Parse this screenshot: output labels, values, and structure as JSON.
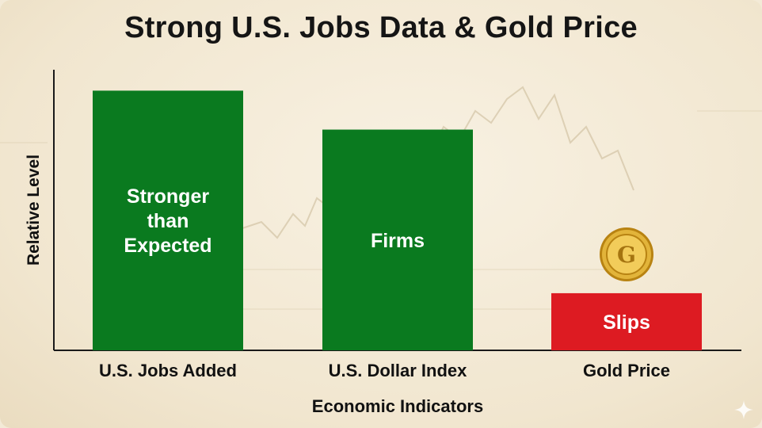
{
  "chart_data": {
    "type": "bar",
    "title": "Strong U.S. Jobs Data & Gold Price",
    "xlabel": "Economic Indicators",
    "ylabel": "Relative Level",
    "categories": [
      "U.S. Jobs Added",
      "U.S. Dollar Index",
      "Gold Price"
    ],
    "values": [
      100,
      85,
      22
    ],
    "bar_labels": [
      [
        "Stronger",
        "than",
        "Expected"
      ],
      [
        "Firms"
      ],
      [
        "Slips"
      ]
    ],
    "ylim": [
      0,
      105
    ],
    "grid": false,
    "colors": [
      "#0a7a1f",
      "#0a7a1f",
      "#dd1b22"
    ]
  },
  "gold_coin_icon": "gold-coin-icon",
  "corner_icon": "sparkle-icon"
}
